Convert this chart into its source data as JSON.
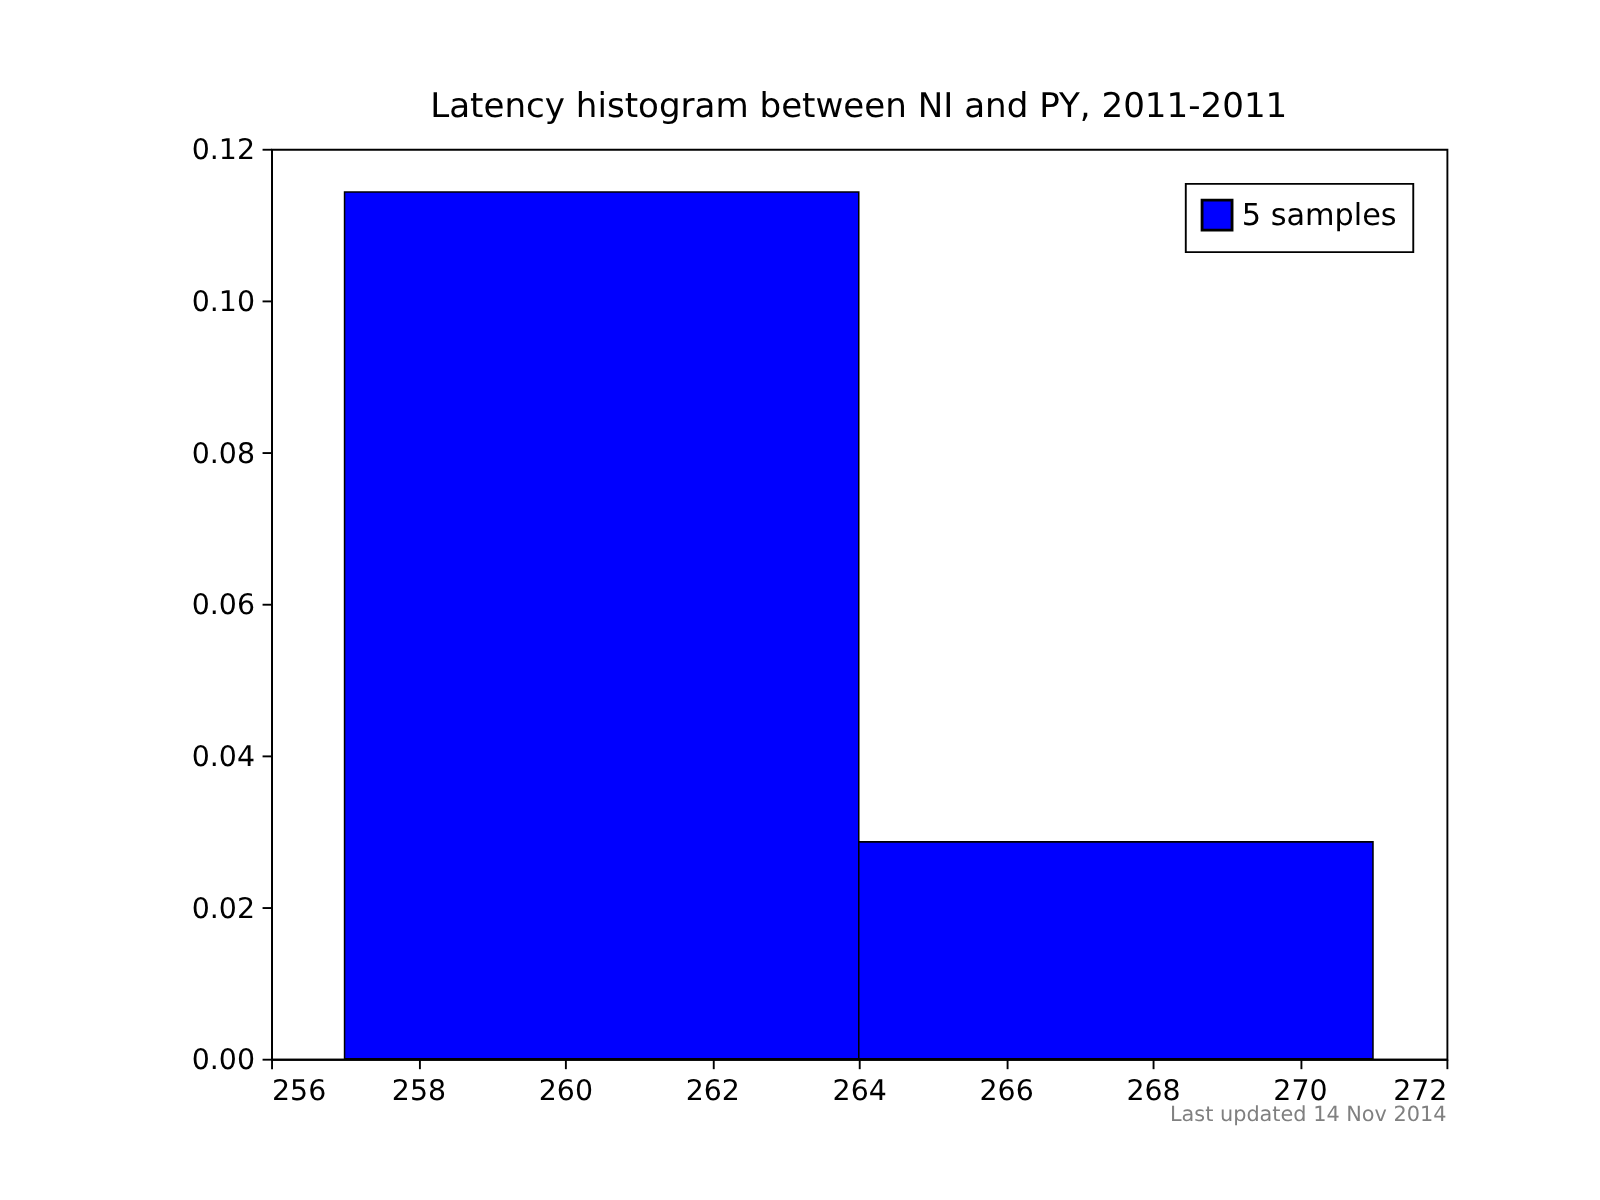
{
  "chart_data": {
    "type": "histogram",
    "title": "Latency histogram between NI and PY, 2011-2011",
    "bins": [
      257,
      264,
      271
    ],
    "series": [
      {
        "name": "5 samples",
        "color": "#0000ff",
        "values": [
          0.1143,
          0.0286
        ]
      }
    ],
    "xlim": [
      256,
      272
    ],
    "xticks": [
      256,
      258,
      260,
      262,
      264,
      266,
      268,
      270,
      272
    ],
    "ylim": [
      0,
      0.12
    ],
    "yticks": [
      {
        "value": 0,
        "label": "0.00"
      },
      {
        "value": 0.02,
        "label": "0.02"
      },
      {
        "value": 0.04,
        "label": "0.04"
      },
      {
        "value": 0.06,
        "label": "0.06"
      },
      {
        "value": 0.08,
        "label": "0.08"
      },
      {
        "value": 0.1,
        "label": "0.10"
      },
      {
        "value": 0.12,
        "label": "0.12"
      }
    ],
    "grid": false,
    "legend": "top right",
    "annotations": [
      "Last updated 14 Nov 2014"
    ]
  }
}
